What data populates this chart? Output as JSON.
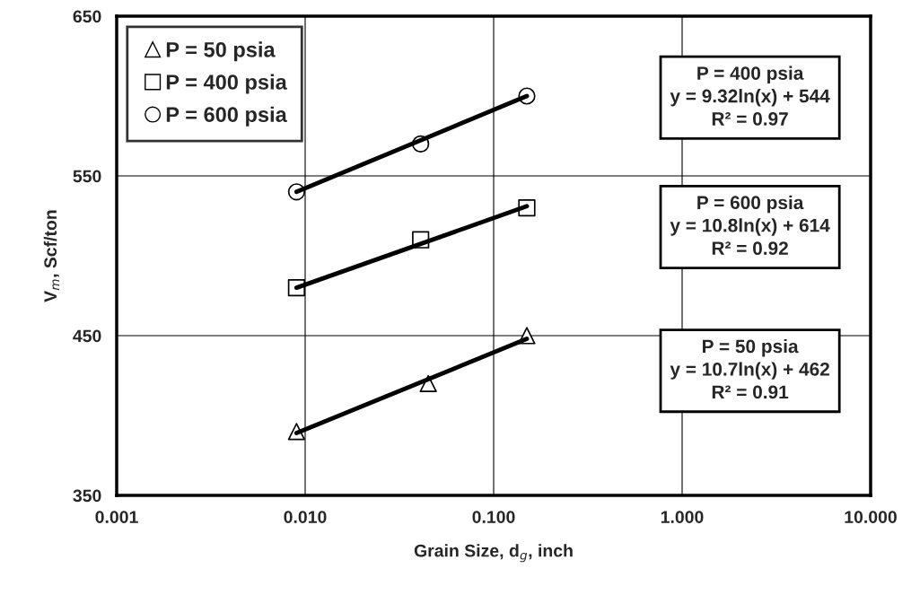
{
  "chart_data": {
    "type": "scatter",
    "xlabel": "Grain Size, d$_{g}$, inch",
    "ylabel": "V$_{m}$, Scf/ton",
    "log": "x",
    "xlim": [
      0.001,
      10
    ],
    "ylim": [
      350,
      650
    ],
    "xticks": [
      {
        "value": 0.001,
        "label": "0.001"
      },
      {
        "value": 0.01,
        "label": "0.010"
      },
      {
        "value": 0.1,
        "label": "0.100"
      },
      {
        "value": 1,
        "label": "1.000"
      },
      {
        "value": 10,
        "label": "10.000"
      }
    ],
    "yticks": [
      350,
      450,
      550,
      650
    ],
    "grid": true,
    "legend": "top left",
    "series": [
      {
        "name": "P = 50 psia",
        "color": "#000000",
        "marker": "triangle",
        "x": [
          0.009,
          0.045,
          0.15
        ],
        "values": [
          390,
          420,
          450
        ]
      },
      {
        "name": "P = 400 psia",
        "color": "#000000",
        "marker": "square",
        "x": [
          0.009,
          0.041,
          0.15
        ],
        "values": [
          480,
          510,
          530
        ]
      },
      {
        "name": "P = 600 psia",
        "color": "#000000",
        "marker": "circle",
        "x": [
          0.009,
          0.041,
          0.15
        ],
        "values": [
          540,
          570,
          600
        ]
      },
      {
        "type": "line",
        "color": "#000000",
        "marker": "none",
        "x": [
          0.009,
          0.15
        ],
        "values": [
          389,
          448
        ]
      },
      {
        "type": "line",
        "color": "#000000",
        "marker": "none",
        "x": [
          0.009,
          0.15
        ],
        "values": [
          480,
          531
        ]
      },
      {
        "type": "line",
        "color": "#000000",
        "marker": "none",
        "x": [
          0.009,
          0.15
        ],
        "values": [
          540,
          600
        ]
      }
    ],
    "annotations": [
      "P = 400 psia\ny = 9.32ln(x) + 544\nR² = 0.97",
      "P = 600 psia\ny = 10.8ln(x) + 614\nR² = 0.92",
      "P = 50 psia\ny = 10.7ln(x) + 462\nR² = 0.91"
    ]
  }
}
